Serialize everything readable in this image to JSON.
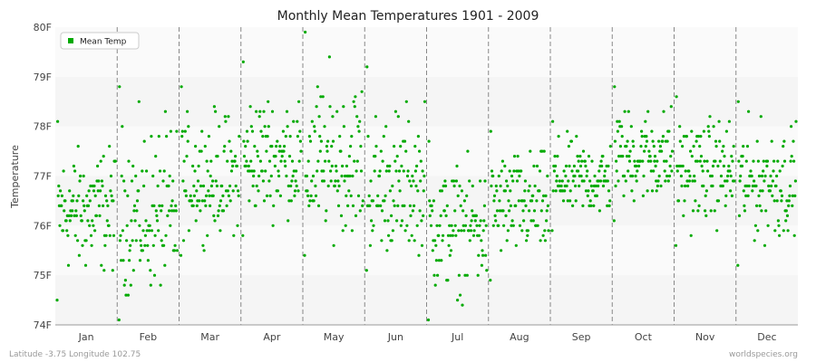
{
  "chart_data": {
    "type": "scatter",
    "title": "Monthly Mean Temperatures 1901 - 2009",
    "ylabel": "Temperature",
    "xlabel": "",
    "categories": [
      "Jan",
      "Feb",
      "Mar",
      "Apr",
      "May",
      "Jun",
      "Jul",
      "Aug",
      "Sep",
      "Oct",
      "Nov",
      "Dec"
    ],
    "yticks": [
      "74F",
      "75F",
      "76F",
      "77F",
      "78F",
      "79F",
      "80F"
    ],
    "ylim": [
      74,
      80
    ],
    "grid": "alternating horizontal bands, dashed vertical month separators",
    "legend": {
      "position": "top-left",
      "entries": [
        "Mean Temp"
      ]
    },
    "series": [
      {
        "name": "Mean Temp",
        "color": "#00aa00",
        "monthly_stats": [
          {
            "month": "Jan",
            "min": 74.5,
            "median": 76.3,
            "max": 78.1
          },
          {
            "month": "Feb",
            "min": 74.1,
            "median": 76.1,
            "max": 78.8
          },
          {
            "month": "Mar",
            "min": 75.4,
            "median": 76.9,
            "max": 78.8
          },
          {
            "month": "Apr",
            "min": 75.8,
            "median": 77.3,
            "max": 79.3
          },
          {
            "month": "May",
            "min": 75.4,
            "median": 77.1,
            "max": 79.9
          },
          {
            "month": "Jun",
            "min": 75.1,
            "median": 76.6,
            "max": 79.2
          },
          {
            "month": "Jul",
            "min": 74.1,
            "median": 76.0,
            "max": 77.7
          },
          {
            "month": "Aug",
            "min": 74.9,
            "median": 76.4,
            "max": 77.9
          },
          {
            "month": "Sep",
            "min": 75.9,
            "median": 76.9,
            "max": 78.1
          },
          {
            "month": "Oct",
            "min": 76.1,
            "median": 77.4,
            "max": 78.8
          },
          {
            "month": "Nov",
            "min": 75.6,
            "median": 77.1,
            "max": 78.6
          },
          {
            "month": "Dec",
            "min": 75.2,
            "median": 76.9,
            "max": 78.5
          }
        ]
      }
    ]
  },
  "footer": {
    "location": "Latitude -3.75 Longitude 102.75",
    "source": "worldspecies.org"
  }
}
